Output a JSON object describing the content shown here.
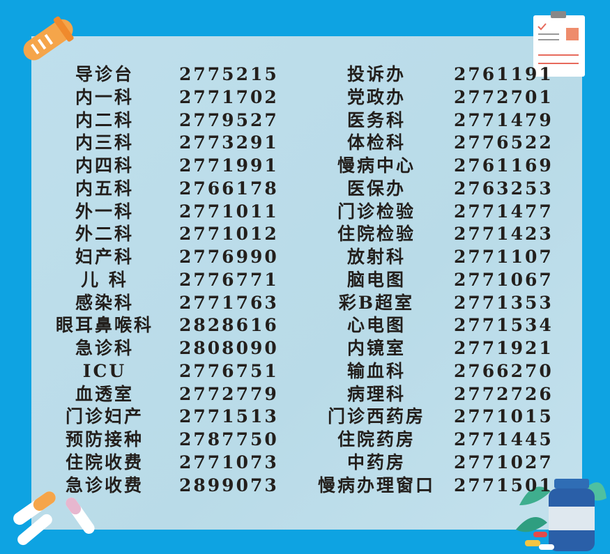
{
  "left_column": [
    {
      "name": "导诊台",
      "phone": "2775215"
    },
    {
      "name": "内一科",
      "phone": "2771702"
    },
    {
      "name": "内二科",
      "phone": "2779527"
    },
    {
      "name": "内三科",
      "phone": "2773291"
    },
    {
      "name": "内四科",
      "phone": "2771991"
    },
    {
      "name": "内五科",
      "phone": "2766178"
    },
    {
      "name": "外一科",
      "phone": "2771011"
    },
    {
      "name": "外二科",
      "phone": "2771012"
    },
    {
      "name": "妇产科",
      "phone": "2776990"
    },
    {
      "name": "儿  科",
      "phone": "2776771"
    },
    {
      "name": "感染科",
      "phone": "2771763"
    },
    {
      "name": "眼耳鼻喉科",
      "phone": "2828616"
    },
    {
      "name": "急诊科",
      "phone": "2808090"
    },
    {
      "name": "ICU",
      "phone": "2776751"
    },
    {
      "name": "血透室",
      "phone": "2772779"
    },
    {
      "name": "门诊妇产",
      "phone": "2771513"
    },
    {
      "name": "预防接种",
      "phone": "2787750"
    },
    {
      "name": "住院收费",
      "phone": "2771073"
    },
    {
      "name": "急诊收费",
      "phone": "2899073"
    }
  ],
  "right_column": [
    {
      "name": "投诉办",
      "phone": "2761191"
    },
    {
      "name": "党政办",
      "phone": "2772701"
    },
    {
      "name": "医务科",
      "phone": "2771479"
    },
    {
      "name": "体检科",
      "phone": "2776522"
    },
    {
      "name": "慢病中心",
      "phone": "2761169"
    },
    {
      "name": "医保办",
      "phone": "2763253"
    },
    {
      "name": "门诊检验",
      "phone": "2771477"
    },
    {
      "name": "住院检验",
      "phone": "2771423"
    },
    {
      "name": "放射科",
      "phone": "2771107"
    },
    {
      "name": "脑电图",
      "phone": "2771067"
    },
    {
      "name": "彩B超室",
      "phone": "2771353"
    },
    {
      "name": "心电图",
      "phone": "2771534"
    },
    {
      "name": "内镜室",
      "phone": "2771921"
    },
    {
      "name": "输血科",
      "phone": "2766270"
    },
    {
      "name": "病理科",
      "phone": "2772726"
    },
    {
      "name": "门诊西药房",
      "phone": "2771015"
    },
    {
      "name": "住院药房",
      "phone": "2771445"
    },
    {
      "name": "中药房",
      "phone": "2771027"
    },
    {
      "name": "慢病办理窗口",
      "phone": "2771501"
    }
  ],
  "colors": {
    "background": "#0ea3e2",
    "panel": "#bcdcea",
    "text": "#231f1c",
    "accent_orange": "#f5a54a"
  },
  "icons": [
    "test-tube-icon",
    "clipboard-icon",
    "pills-icon",
    "medicine-bottle-icon"
  ]
}
